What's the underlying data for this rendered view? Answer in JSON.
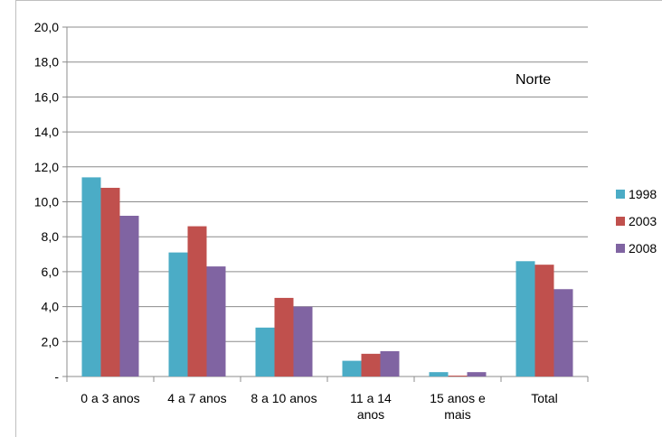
{
  "chart_data": {
    "type": "bar",
    "title": "",
    "annotation": "Norte",
    "xlabel": "",
    "ylabel": "",
    "ylim": [
      0,
      20
    ],
    "yticks": [
      "-",
      "2,0",
      "4,0",
      "6,0",
      "8,0",
      "10,0",
      "12,0",
      "14,0",
      "16,0",
      "18,0",
      "20,0"
    ],
    "categories": [
      [
        "0 a 3 anos"
      ],
      [
        "4 a 7 anos"
      ],
      [
        "8 a 10 anos"
      ],
      [
        "11 a 14",
        "anos"
      ],
      [
        "15 anos e",
        "mais"
      ],
      [
        "Total"
      ]
    ],
    "series": [
      {
        "name": "1998",
        "color": "#4bacc6",
        "values": [
          11.4,
          7.1,
          2.8,
          0.9,
          0.25,
          6.6
        ]
      },
      {
        "name": "2003",
        "color": "#c0504d",
        "values": [
          10.8,
          8.6,
          4.5,
          1.3,
          0.05,
          6.4
        ]
      },
      {
        "name": "2008",
        "color": "#8064a2",
        "values": [
          9.2,
          6.3,
          4.0,
          1.45,
          0.25,
          5.0
        ]
      }
    ],
    "grid": true,
    "legend_position": "right"
  }
}
